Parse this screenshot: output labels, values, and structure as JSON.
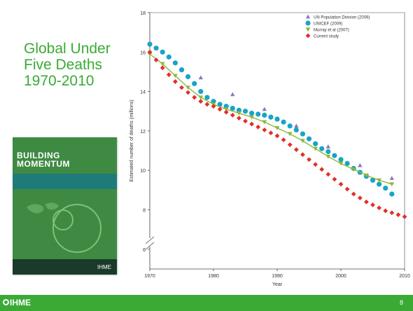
{
  "slide": {
    "title": "Global Under\nFive Deaths\n1970-2010",
    "page_number": "8",
    "footer_brand": "IHME"
  },
  "report": {
    "title": "BUILDING\nMOMENTUM",
    "brand": "IHME"
  },
  "chart_data": {
    "type": "line",
    "title": "",
    "xlabel": "Year",
    "ylabel": "Estimated number of deaths (millions)",
    "xlim": [
      1970,
      2010
    ],
    "ylim": [
      5,
      18
    ],
    "axis_break": true,
    "xticks": [
      1970,
      1980,
      1990,
      2000,
      2010
    ],
    "yticks": [
      6,
      8,
      10,
      12,
      14,
      16,
      18
    ],
    "legend_position": "top-right",
    "series": [
      {
        "name": "UN Population Division (2009)",
        "marker": "triangle-up",
        "color": "#8c79b8",
        "x": [
          1970,
          1978,
          1983,
          1988,
          1993,
          1998,
          2003,
          2008
        ],
        "y": [
          16.0,
          14.7,
          13.85,
          13.1,
          12.25,
          11.2,
          10.25,
          9.6
        ]
      },
      {
        "name": "UNICEF (2009)",
        "marker": "circle",
        "color": "#1aa3c8",
        "x": [
          1970,
          1971,
          1972,
          1973,
          1974,
          1975,
          1976,
          1977,
          1978,
          1979,
          1980,
          1981,
          1982,
          1983,
          1984,
          1985,
          1986,
          1987,
          1988,
          1989,
          1990,
          1991,
          1992,
          1993,
          1994,
          1995,
          1996,
          1997,
          1998,
          1999,
          2000,
          2001,
          2002,
          2003,
          2004,
          2005,
          2006,
          2007,
          2008
        ],
        "y": [
          16.4,
          16.2,
          16.0,
          15.75,
          15.45,
          15.1,
          14.75,
          14.4,
          14.0,
          13.7,
          13.5,
          13.35,
          13.25,
          13.15,
          13.05,
          13.0,
          12.9,
          12.85,
          12.8,
          12.7,
          12.6,
          12.45,
          12.25,
          12.05,
          11.85,
          11.6,
          11.35,
          11.1,
          10.95,
          10.75,
          10.55,
          10.35,
          10.1,
          9.9,
          9.7,
          9.5,
          9.3,
          9.1,
          8.8
        ]
      },
      {
        "name": "Murray et al (2007)",
        "marker": "triangle-down",
        "color": "#8cb83c",
        "x": [
          1970,
          1972,
          1974,
          1976,
          1978,
          1980,
          1982,
          1984,
          1986,
          1988,
          1990,
          1992,
          1994,
          1996,
          1998,
          2000,
          2002,
          2004,
          2006,
          2008
        ],
        "y": [
          15.9,
          15.4,
          14.8,
          14.2,
          13.7,
          13.35,
          13.1,
          12.9,
          12.7,
          12.45,
          12.15,
          11.85,
          11.5,
          11.1,
          10.7,
          10.35,
          10.05,
          9.75,
          9.5,
          9.3
        ]
      },
      {
        "name": "Current study",
        "marker": "diamond",
        "color": "#e0302a",
        "x": [
          1970,
          1971,
          1972,
          1973,
          1974,
          1975,
          1976,
          1977,
          1978,
          1979,
          1980,
          1981,
          1982,
          1983,
          1984,
          1985,
          1986,
          1987,
          1988,
          1989,
          1990,
          1991,
          1992,
          1993,
          1994,
          1995,
          1996,
          1997,
          1998,
          1999,
          2000,
          2001,
          2002,
          2003,
          2004,
          2005,
          2006,
          2007,
          2008,
          2009,
          2010
        ],
        "y": [
          16.0,
          15.6,
          15.2,
          14.85,
          14.5,
          14.2,
          13.95,
          13.7,
          13.5,
          13.35,
          13.25,
          13.1,
          12.95,
          12.8,
          12.65,
          12.5,
          12.35,
          12.2,
          12.05,
          11.9,
          11.75,
          11.55,
          11.3,
          11.05,
          10.8,
          10.55,
          10.3,
          10.05,
          9.8,
          9.55,
          9.3,
          9.05,
          8.8,
          8.6,
          8.4,
          8.25,
          8.1,
          7.95,
          7.85,
          7.75,
          7.65
        ]
      }
    ]
  }
}
